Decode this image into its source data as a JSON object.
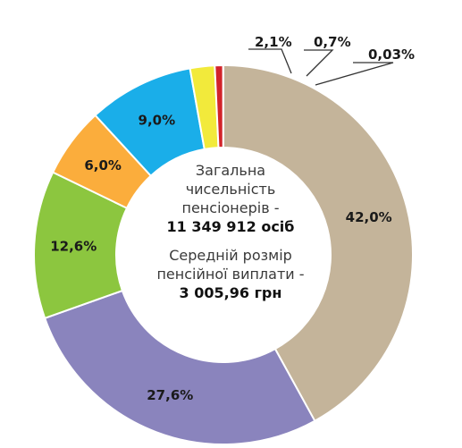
{
  "center_text": {
    "line1": "Загальна",
    "line2": "чисельність",
    "line3": "пенсіонерів -",
    "total_pensioners": "11 349 912 осіб",
    "line4": "Середній розмір",
    "line5": "пенсійної виплати -",
    "avg_pension": "3 005,96 грн"
  },
  "chart_data": {
    "type": "pie",
    "variant": "donut",
    "start_angle_deg": 0,
    "direction": "clockwise",
    "slices": [
      {
        "label": "42,0%",
        "value": 42.0,
        "color": "#c4b49a"
      },
      {
        "label": "27,6%",
        "value": 27.6,
        "color": "#8a84bd"
      },
      {
        "label": "12,6%",
        "value": 12.6,
        "color": "#8cc63f"
      },
      {
        "label": "6,0%",
        "value": 6.0,
        "color": "#fbad3c"
      },
      {
        "label": "9,0%",
        "value": 9.0,
        "color": "#1aaee9"
      },
      {
        "label": "2,1%",
        "value": 2.1,
        "color": "#f2ea3b"
      },
      {
        "label": "0,7%",
        "value": 0.7,
        "color": "#d2232a"
      },
      {
        "label": "0,03%",
        "value": 0.03,
        "color": "#4a4a4a"
      }
    ]
  }
}
